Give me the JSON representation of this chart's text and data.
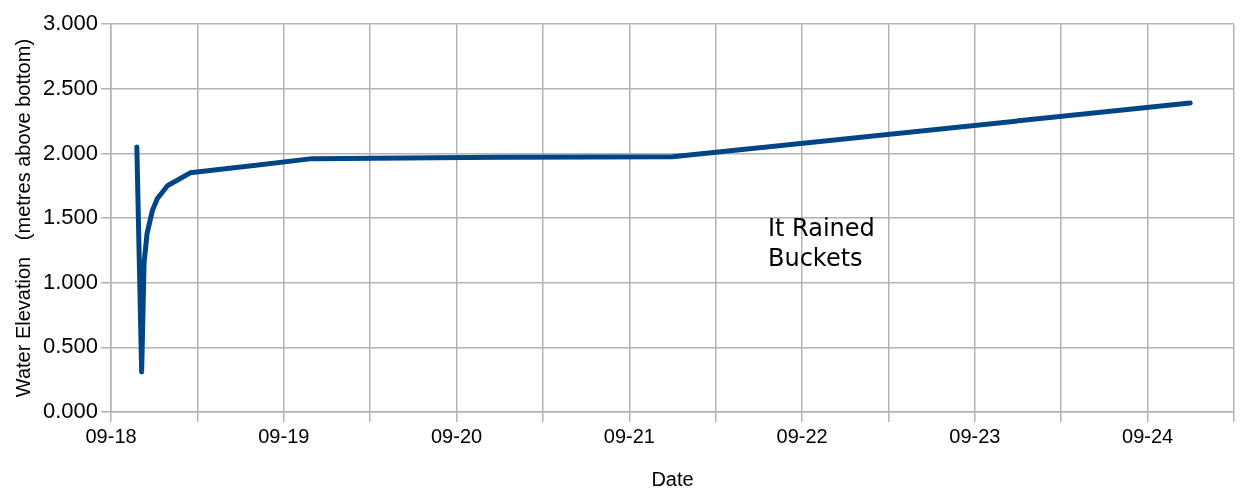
{
  "chart_data": {
    "type": "line",
    "xlabel": "Date",
    "ylabel": "Water Elevation   (metres above bottom)",
    "x": [
      "--09-18T03:35",
      "--09-18T04:15",
      "--09-18T04:35",
      "--09-18T05:00",
      "--09-18T05:45",
      "--09-18T06:25",
      "--09-18T07:50",
      "--09-18T11:00",
      "--09-19T03:55",
      "--09-20T05:40",
      "--09-21T06:00",
      "--09-24T05:55"
    ],
    "series": [
      {
        "color": "#004586",
        "values": [
          2.05,
          0.31,
          1.15,
          1.38,
          1.56,
          1.65,
          1.75,
          1.85,
          1.96,
          1.97,
          1.975,
          2.39
        ]
      }
    ],
    "xlim": [
      "--09-18",
      "--09-24T12:00"
    ],
    "xticks": [
      {
        "value": "--09-18",
        "label": "09-18"
      },
      {
        "value": "--09-18T12:00",
        "label": null
      },
      {
        "value": "--09-19",
        "label": "09-19"
      },
      {
        "value": "--09-19T12:00",
        "label": null
      },
      {
        "value": "--09-20",
        "label": "09-20"
      },
      {
        "value": "--09-20T12:00",
        "label": null
      },
      {
        "value": "--09-21",
        "label": "09-21"
      },
      {
        "value": "--09-21T12:00",
        "label": null
      },
      {
        "value": "--09-22",
        "label": "09-22"
      },
      {
        "value": "--09-22T12:00",
        "label": null
      },
      {
        "value": "--09-23",
        "label": "09-23"
      },
      {
        "value": "--09-23T12:00",
        "label": null
      },
      {
        "value": "--09-24",
        "label": "09-24"
      },
      {
        "value": "--09-24T12:00",
        "label": null
      }
    ],
    "ylim": [
      0,
      3
    ],
    "yticks": [
      {
        "value": 0,
        "label": "0.000"
      },
      {
        "value": 0.5,
        "label": "0.500"
      },
      {
        "value": 1,
        "label": "1.000"
      },
      {
        "value": 1.5,
        "label": "1.500"
      },
      {
        "value": 2,
        "label": "2.000"
      },
      {
        "value": 2.5,
        "label": "2.500"
      },
      {
        "value": 3,
        "label": "3.000"
      }
    ],
    "grid": true,
    "legend": false,
    "marker": "none",
    "line_style": "solid",
    "annotations": [
      "It Rained\nBuckets"
    ]
  }
}
